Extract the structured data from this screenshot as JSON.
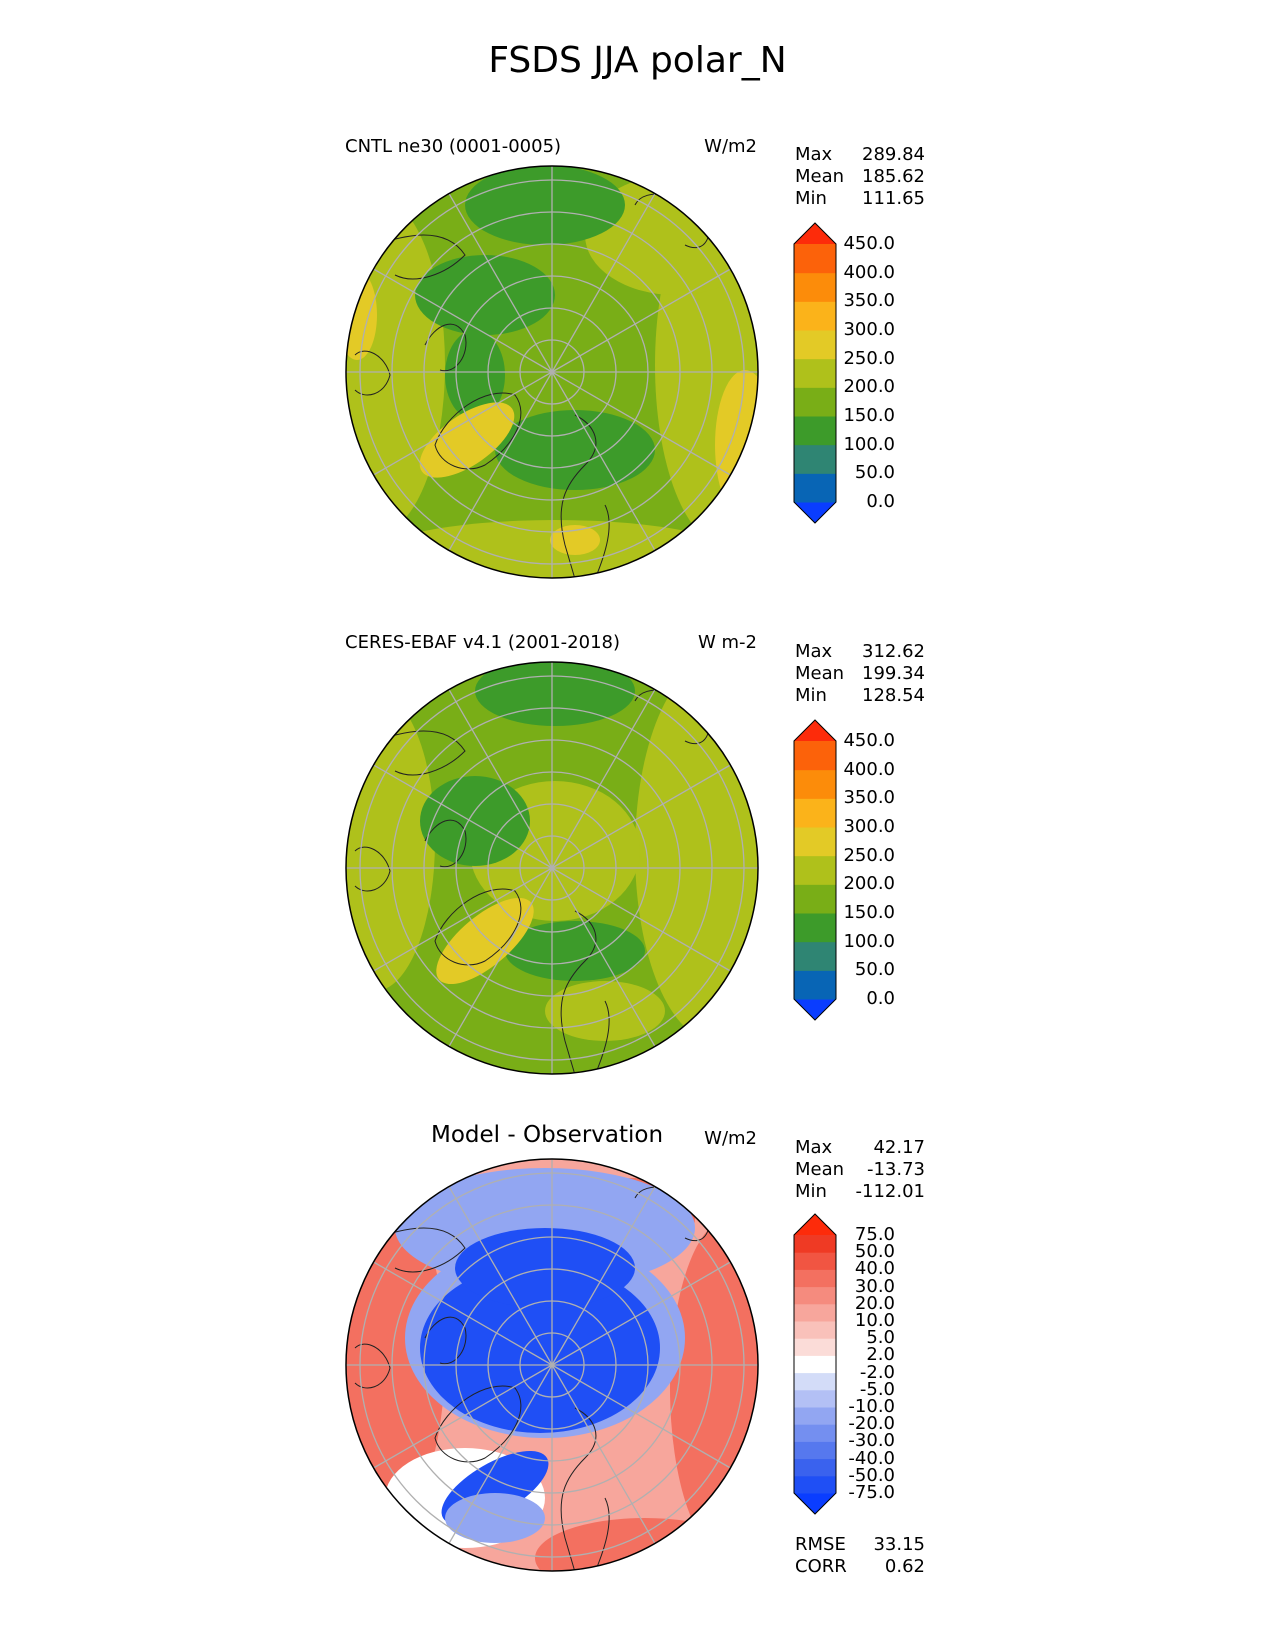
{
  "figure_title": "FSDS JJA polar_N",
  "chart_data": [
    {
      "type": "heatmap",
      "projection": "north polar stereographic",
      "title": "CNTL ne30 (0001-0005)",
      "units": "W/m2",
      "stats": {
        "max_label": "Max",
        "max": "289.84",
        "mean_label": "Mean",
        "mean": "185.62",
        "min_label": "Min",
        "min": "111.65"
      },
      "colorbar": {
        "levels": [
          "0.0",
          "50.0",
          "100.0",
          "150.0",
          "200.0",
          "250.0",
          "300.0",
          "350.0",
          "400.0",
          "450.0"
        ],
        "colors": [
          "#0a3dff",
          "#0865b5",
          "#2f8573",
          "#3d9b2a",
          "#79ae17",
          "#afc11b",
          "#e3ca26",
          "#fbb31a",
          "#fc8c0a",
          "#fc620a",
          "#fd2b0a"
        ]
      },
      "field_colors": {
        "background": "#79ae17",
        "high": "#afc11b",
        "low": "#3d9b2a",
        "peak": "#e3ca26"
      }
    },
    {
      "type": "heatmap",
      "projection": "north polar stereographic",
      "title": "CERES-EBAF v4.1 (2001-2018)",
      "units": "W m-2",
      "stats": {
        "max_label": "Max",
        "max": "312.62",
        "mean_label": "Mean",
        "mean": "199.34",
        "min_label": "Min",
        "min": "128.54"
      },
      "colorbar": {
        "levels": [
          "0.0",
          "50.0",
          "100.0",
          "150.0",
          "200.0",
          "250.0",
          "300.0",
          "350.0",
          "400.0",
          "450.0"
        ],
        "colors": [
          "#0a3dff",
          "#0865b5",
          "#2f8573",
          "#3d9b2a",
          "#79ae17",
          "#afc11b",
          "#e3ca26",
          "#fbb31a",
          "#fc8c0a",
          "#fc620a",
          "#fd2b0a"
        ]
      },
      "field_colors": {
        "background": "#79ae17",
        "high": "#afc11b",
        "low": "#3d9b2a",
        "peak": "#e3ca26"
      }
    },
    {
      "type": "heatmap",
      "projection": "north polar stereographic",
      "title": "Model - Observation",
      "units": "W/m2",
      "stats": {
        "max_label": "Max",
        "max": "42.17",
        "mean_label": "Mean",
        "mean": "-13.73",
        "min_label": "Min",
        "min": "-112.01"
      },
      "colorbar": {
        "levels": [
          "-75.0",
          "-50.0",
          "-40.0",
          "-30.0",
          "-20.0",
          "-10.0",
          "-5.0",
          "-2.0",
          "2.0",
          "5.0",
          "10.0",
          "20.0",
          "30.0",
          "40.0",
          "50.0",
          "75.0"
        ],
        "colors": [
          "#0a3dff",
          "#1f4ff5",
          "#3a62ee",
          "#5678ee",
          "#748ff0",
          "#92a6f2",
          "#b3c0f5",
          "#d3dcf8",
          "#ffffff",
          "#fbdcd8",
          "#f9c1ba",
          "#f7a69c",
          "#f58b7e",
          "#f37060",
          "#f15542",
          "#ef3a24",
          "#fd2b0a"
        ]
      },
      "field_colors": {
        "background": "#f7a69c",
        "high": "#f37060",
        "low": "#1f4ff5",
        "mid": "#92a6f2"
      }
    }
  ],
  "metrics": {
    "rmse_label": "RMSE",
    "rmse": "33.15",
    "corr_label": "CORR",
    "corr": "0.62"
  }
}
